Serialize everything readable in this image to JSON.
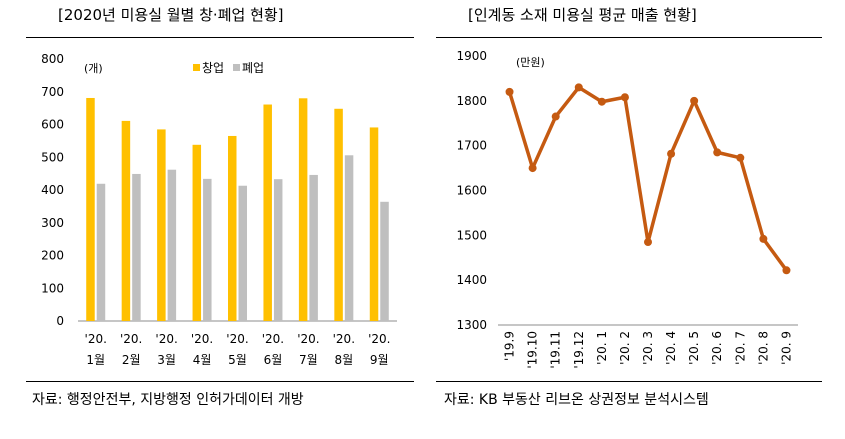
{
  "left": {
    "title": "[2020년 미용실 월별 창·폐업 현황]",
    "source": "자료: 행정안전부, 지방행정 인허가데이터 개방",
    "chart_data": {
      "type": "bar",
      "unit": "(개)",
      "categories": [
        {
          "line1": "'20.",
          "line2": "1월"
        },
        {
          "line1": "'20.",
          "line2": "2월"
        },
        {
          "line1": "'20.",
          "line2": "3월"
        },
        {
          "line1": "'20.",
          "line2": "4월"
        },
        {
          "line1": "'20.",
          "line2": "5월"
        },
        {
          "line1": "'20.",
          "line2": "6월"
        },
        {
          "line1": "'20.",
          "line2": "7월"
        },
        {
          "line1": "'20.",
          "line2": "8월"
        },
        {
          "line1": "'20.",
          "line2": "9월"
        }
      ],
      "series": [
        {
          "name": "창업",
          "color": "#FFC000",
          "values": [
            681,
            611,
            585,
            538,
            565,
            661,
            680,
            648,
            591
          ]
        },
        {
          "name": "폐업",
          "color": "#BFBFBF",
          "values": [
            419,
            449,
            462,
            434,
            413,
            433,
            446,
            506,
            364
          ]
        }
      ],
      "ylim": [
        0,
        800
      ],
      "yticks": [
        0,
        100,
        200,
        300,
        400,
        500,
        600,
        700,
        800
      ],
      "legend_position": "top",
      "grid": false
    }
  },
  "right": {
    "title": "[인계동 소재 미용실 평균 매출 현황]",
    "source": "자료: KB 부동산 리브온 상권정보 분석시스템",
    "chart_data": {
      "type": "line",
      "unit": "(만원)",
      "color": "#C55A11",
      "x": [
        "'19.9",
        "'19.10",
        "'19.11",
        "'19.12",
        "'20. 1",
        "'20. 2",
        "'20. 3",
        "'20. 4",
        "'20. 5",
        "'20. 6",
        "'20. 7",
        "'20. 8",
        "'20. 9"
      ],
      "values": [
        1820,
        1650,
        1765,
        1830,
        1798,
        1808,
        1485,
        1682,
        1800,
        1685,
        1673,
        1492,
        1422
      ],
      "ylim": [
        1300,
        1900
      ],
      "yticks": [
        1300,
        1400,
        1500,
        1600,
        1700,
        1800,
        1900
      ],
      "grid": false
    }
  }
}
